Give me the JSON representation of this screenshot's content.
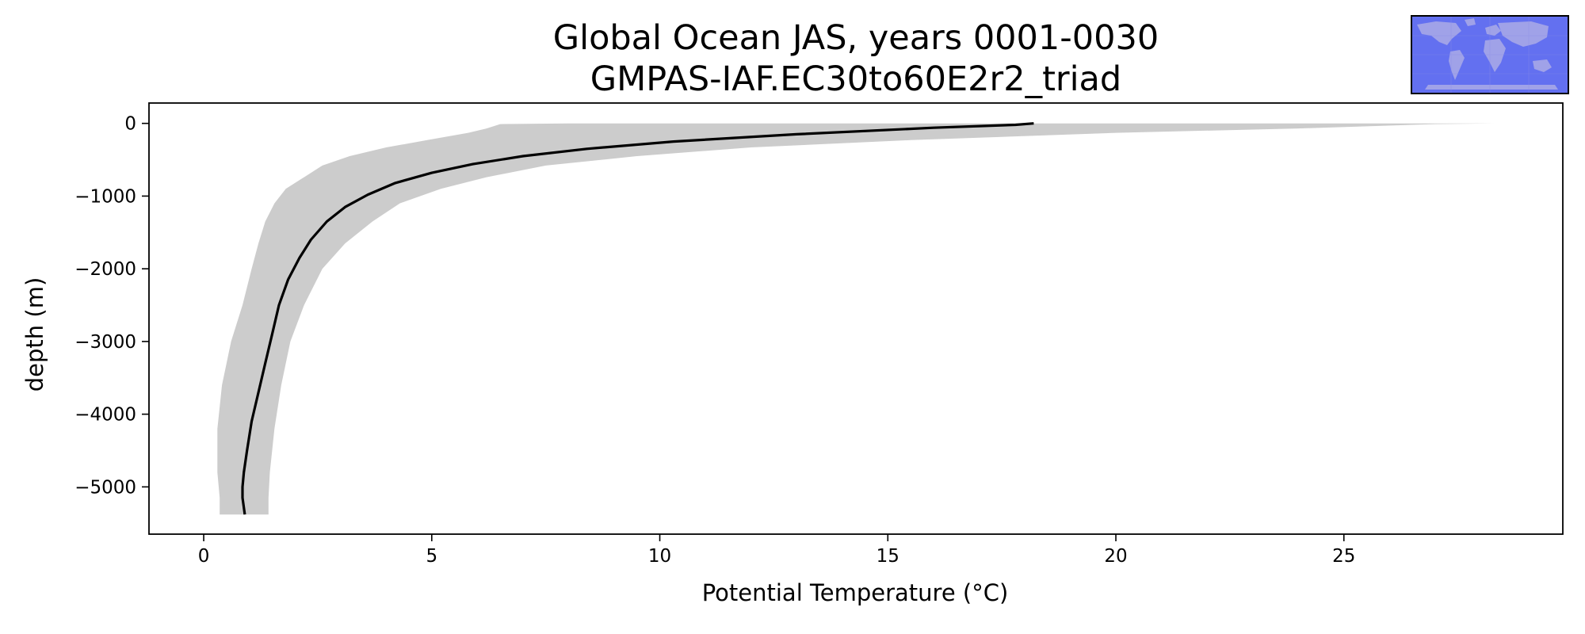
{
  "chart_data": {
    "type": "line",
    "title": "Global Ocean JAS, years 0001-0030",
    "subtitle": "GMPAS-IAF.EC30to60E2r2_triad",
    "xlabel": "Potential Temperature (°C)",
    "ylabel": "depth (m)",
    "xlim": [
      -1.2,
      29.8
    ],
    "ylim": [
      -5650,
      280
    ],
    "x_ticks": [
      0,
      5,
      10,
      15,
      20,
      25
    ],
    "x_tick_labels": [
      "0",
      "5",
      "10",
      "15",
      "20",
      "25"
    ],
    "y_ticks": [
      0,
      -1000,
      -2000,
      -3000,
      -4000,
      -5000
    ],
    "y_tick_labels": [
      "0",
      "−1000",
      "−2000",
      "−3000",
      "−4000",
      "−5000"
    ],
    "grid": false,
    "series": [
      {
        "kind": "mean",
        "color": "#000000",
        "x": [
          18.2,
          17.8,
          16.0,
          13.0,
          10.3,
          8.4,
          7.0,
          5.9,
          5.0,
          4.2,
          3.6,
          3.1,
          2.7,
          2.35,
          2.1,
          1.85,
          1.65,
          1.5,
          1.35,
          1.2,
          1.05,
          0.95,
          0.88,
          0.85,
          0.85,
          0.9
        ],
        "y": [
          0,
          -20,
          -60,
          -150,
          -250,
          -350,
          -450,
          -560,
          -680,
          -820,
          -980,
          -1150,
          -1350,
          -1600,
          -1850,
          -2150,
          -2500,
          -2900,
          -3300,
          -3700,
          -4100,
          -4500,
          -4800,
          -5000,
          -5150,
          -5380
        ]
      },
      {
        "kind": "range",
        "color": "#cccccc",
        "x": [
          28.3,
          27.0,
          24.0,
          20.0,
          15.5,
          12.0,
          9.5,
          7.5,
          6.2,
          5.2,
          4.3,
          3.7,
          3.1,
          2.6,
          2.2,
          1.9,
          1.7,
          1.55,
          1.45,
          1.42,
          1.42
        ],
        "x_min": [
          8.0,
          6.5,
          6.2,
          5.8,
          4.9,
          4.0,
          3.2,
          2.6,
          2.2,
          1.8,
          1.55,
          1.35,
          1.2,
          1.05,
          0.85,
          0.6,
          0.4,
          0.3,
          0.3,
          0.35,
          0.35
        ],
        "y": [
          0,
          -10,
          -70,
          -130,
          -230,
          -330,
          -450,
          -580,
          -740,
          -900,
          -1100,
          -1350,
          -1650,
          -2000,
          -2500,
          -3000,
          -3600,
          -4200,
          -4800,
          -5150,
          -5380
        ]
      }
    ]
  },
  "inset_map": {
    "icon": "world-map-icon",
    "ocean_color": "#6370f0",
    "land_color": "#a0a2e8"
  }
}
